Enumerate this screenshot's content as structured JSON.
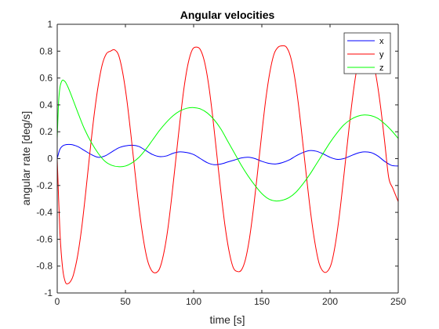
{
  "chart_data": {
    "type": "line",
    "title": "Angular velocities",
    "xlabel": "time [s]",
    "ylabel": "angular rate [deg/s]",
    "xlim": [
      0,
      250
    ],
    "ylim": [
      -1,
      1
    ],
    "x_ticks": [
      0,
      50,
      100,
      150,
      200,
      250
    ],
    "x_tick_labels": [
      "0",
      "50",
      "100",
      "150",
      "200",
      "250"
    ],
    "y_ticks": [
      -1,
      -0.8,
      -0.6,
      -0.4,
      -0.2,
      0,
      0.2,
      0.4,
      0.6,
      0.8,
      1
    ],
    "y_tick_labels": [
      "-1",
      "-0.8",
      "-0.6",
      "-0.4",
      "-0.2",
      "0",
      "0.2",
      "0.4",
      "0.6",
      "0.8",
      "1"
    ],
    "grid": false,
    "legend_position": "top-right",
    "series": [
      {
        "name": "x",
        "color": "#0000ff",
        "x": [
          0,
          2,
          5,
          10,
          15,
          20,
          25,
          30,
          35,
          40,
          45,
          50,
          55,
          60,
          65,
          70,
          75,
          80,
          85,
          90,
          95,
          100,
          105,
          110,
          115,
          120,
          125,
          130,
          135,
          140,
          145,
          150,
          155,
          160,
          165,
          170,
          175,
          180,
          185,
          190,
          195,
          200,
          205,
          210,
          215,
          220,
          225,
          230,
          235,
          240,
          245,
          250
        ],
        "values": [
          0,
          0.07,
          0.1,
          0.105,
          0.09,
          0.06,
          0.03,
          0.01,
          0.02,
          0.05,
          0.08,
          0.095,
          0.1,
          0.09,
          0.06,
          0.03,
          0.015,
          0.02,
          0.04,
          0.05,
          0.045,
          0.03,
          0.0,
          -0.03,
          -0.045,
          -0.04,
          -0.025,
          -0.01,
          0.005,
          0.01,
          0.0,
          -0.02,
          -0.035,
          -0.04,
          -0.03,
          -0.01,
          0.02,
          0.045,
          0.06,
          0.055,
          0.035,
          0.01,
          -0.005,
          0.0,
          0.02,
          0.04,
          0.05,
          0.045,
          0.02,
          -0.02,
          -0.05,
          -0.055
        ]
      },
      {
        "name": "y",
        "color": "#ff0000",
        "x": [
          0,
          2,
          4,
          6,
          8,
          10,
          12,
          15,
          18,
          21,
          24,
          27,
          30,
          33,
          36,
          39,
          42,
          45,
          48,
          51,
          54,
          57,
          60,
          63,
          66,
          69,
          72,
          75,
          78,
          81,
          84,
          87,
          90,
          93,
          96,
          99,
          102,
          105,
          108,
          111,
          114,
          117,
          120,
          123,
          126,
          129,
          132,
          135,
          138,
          141,
          144,
          147,
          150,
          153,
          156,
          159,
          162,
          165,
          168,
          171,
          174,
          177,
          180,
          183,
          186,
          189,
          192,
          195,
          198,
          201,
          204,
          207,
          210,
          213,
          216,
          219,
          222,
          225,
          228,
          231,
          234,
          237,
          240,
          243,
          246,
          250
        ],
        "values": [
          0,
          -0.55,
          -0.82,
          -0.92,
          -0.93,
          -0.91,
          -0.86,
          -0.72,
          -0.51,
          -0.24,
          0.05,
          0.32,
          0.54,
          0.7,
          0.78,
          0.8,
          0.81,
          0.77,
          0.64,
          0.44,
          0.18,
          -0.1,
          -0.37,
          -0.59,
          -0.75,
          -0.83,
          -0.85,
          -0.82,
          -0.71,
          -0.53,
          -0.28,
          0.0,
          0.28,
          0.53,
          0.71,
          0.81,
          0.83,
          0.81,
          0.72,
          0.55,
          0.31,
          0.03,
          -0.25,
          -0.5,
          -0.69,
          -0.81,
          -0.84,
          -0.83,
          -0.75,
          -0.59,
          -0.36,
          -0.09,
          0.19,
          0.45,
          0.65,
          0.78,
          0.83,
          0.84,
          0.83,
          0.76,
          0.61,
          0.39,
          0.12,
          -0.16,
          -0.42,
          -0.63,
          -0.78,
          -0.84,
          -0.84,
          -0.78,
          -0.63,
          -0.41,
          -0.14,
          0.14,
          0.41,
          0.63,
          0.77,
          0.83,
          0.82,
          0.75,
          0.6,
          0.39,
          0.13,
          -0.14,
          -0.22,
          -0.32
        ]
      },
      {
        "name": "z",
        "color": "#00ff00",
        "x": [
          0,
          1,
          2,
          3,
          4,
          5,
          6,
          8,
          10,
          13,
          16,
          20,
          25,
          30,
          35,
          40,
          45,
          50,
          55,
          60,
          65,
          70,
          75,
          80,
          85,
          90,
          95,
          100,
          105,
          110,
          115,
          120,
          125,
          130,
          135,
          140,
          145,
          150,
          155,
          160,
          165,
          170,
          175,
          180,
          185,
          190,
          195,
          200,
          205,
          210,
          215,
          220,
          225,
          230,
          235,
          240,
          245,
          250
        ],
        "values": [
          0.15,
          0.42,
          0.53,
          0.57,
          0.585,
          0.58,
          0.57,
          0.53,
          0.48,
          0.4,
          0.32,
          0.22,
          0.12,
          0.04,
          -0.02,
          -0.05,
          -0.06,
          -0.055,
          -0.03,
          0.01,
          0.07,
          0.14,
          0.21,
          0.27,
          0.32,
          0.355,
          0.375,
          0.38,
          0.37,
          0.34,
          0.29,
          0.22,
          0.13,
          0.04,
          -0.05,
          -0.13,
          -0.2,
          -0.26,
          -0.3,
          -0.315,
          -0.31,
          -0.29,
          -0.25,
          -0.19,
          -0.12,
          -0.04,
          0.04,
          0.12,
          0.19,
          0.25,
          0.29,
          0.315,
          0.325,
          0.32,
          0.3,
          0.26,
          0.21,
          0.15
        ]
      }
    ]
  }
}
